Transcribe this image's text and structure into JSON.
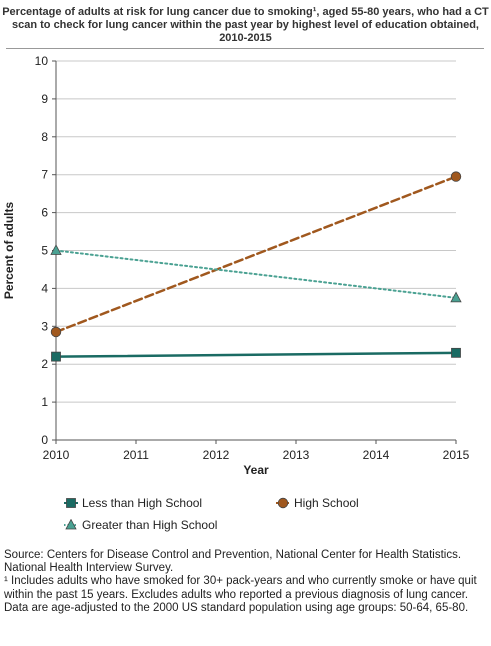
{
  "chart_data": {
    "type": "line",
    "title": "Percentage of adults at risk for lung cancer due to smoking¹, aged 55-80 years, who had a CT scan to check for lung cancer within the past year by highest level of education obtained, 2010-2015",
    "xlabel": "Year",
    "ylabel": "Percent of adults",
    "x": [
      2010,
      2015
    ],
    "x_ticks": [
      "2010",
      "2011",
      "2012",
      "2013",
      "2014",
      "2015"
    ],
    "y_ticks": [
      "0",
      "1",
      "2",
      "3",
      "4",
      "5",
      "6",
      "7",
      "8",
      "9",
      "10"
    ],
    "xlim": [
      2010,
      2015
    ],
    "ylim": [
      0,
      10
    ],
    "grid": true,
    "legend_position": "bottom",
    "series": [
      {
        "name": "Less than High School",
        "values": [
          2.2,
          2.3
        ],
        "color": "#1a6b63",
        "marker": "square",
        "line": "solid"
      },
      {
        "name": "High School",
        "values": [
          2.85,
          6.95
        ],
        "color": "#a0581e",
        "marker": "circle",
        "line": "dashed"
      },
      {
        "name": "Greater than High School",
        "values": [
          5.0,
          3.75
        ],
        "color": "#4aa192",
        "marker": "triangle",
        "line": "dotted"
      }
    ]
  },
  "footnotes": {
    "source": "Source: Centers for Disease Control and Prevention, National Center for Health Statistics. National Health Interview Survey.",
    "note1": "¹ Includes adults who have smoked for 30+ pack-years and who currently smoke or have quit within the past 15 years. Excludes adults who reported a previous diagnosis of lung cancer.",
    "note2": "Data are age-adjusted to the 2000 US standard population using age groups: 50-64, 65-80."
  }
}
